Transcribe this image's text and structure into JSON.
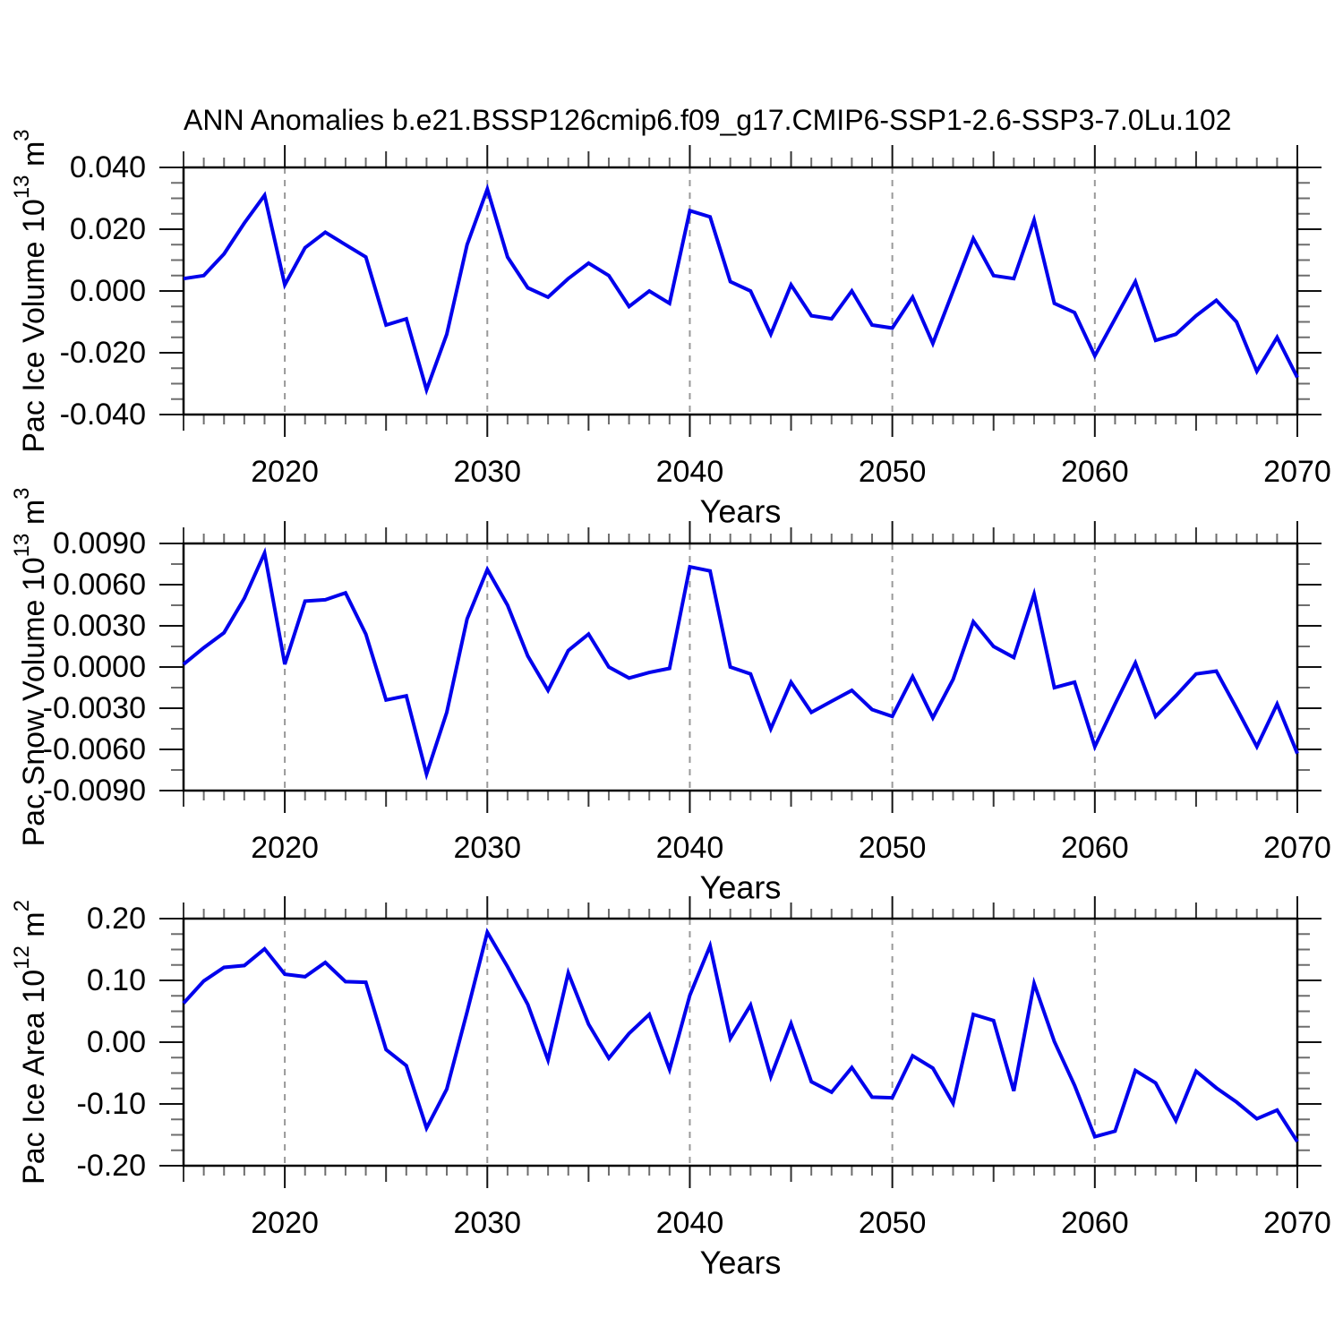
{
  "title": "ANN Anomalies b.e21.BSSP126cmip6.f09_g17.CMIP6-SSP1-2.6-SSP3-7.0Lu.102",
  "colors": {
    "line": "#0101EC",
    "axis": "#000000",
    "gridline": "#999999",
    "major_tick": "#111111",
    "medium_tick": "#333333",
    "minor_tick": "#6e6e6e"
  },
  "x_axis": {
    "label": "Years",
    "start": 2015,
    "end": 2070,
    "major_interval": 10,
    "medium_interval": 5,
    "minor_interval": 1,
    "major_tick_labels": [
      "2020",
      "2030",
      "2040",
      "2050",
      "2060",
      "2070"
    ],
    "gridlines": [
      2020,
      2030,
      2040,
      2050,
      2060
    ]
  },
  "chart_data": [
    {
      "type": "line",
      "series_name": "pac-ice-volume",
      "ylabel": "Pac Ice Volume 10^13 m^3",
      "ylabel_parts": [
        {
          "t": "Pac Ice Volume 10"
        },
        {
          "t": "13",
          "sup": true
        },
        {
          "t": " m"
        },
        {
          "t": "3",
          "sup": true
        }
      ],
      "ylim": [
        -0.04,
        0.04
      ],
      "ymajor": 0.02,
      "yminor": 0.005,
      "ytick_labels": [
        "0.040",
        "0.020",
        "0.000",
        "-0.020",
        "-0.040"
      ],
      "x_start": 2015,
      "x_step": 1,
      "grid": "vertical-dashed-decades",
      "legend": "none",
      "values": [
        0.004,
        0.005,
        0.012,
        0.022,
        0.031,
        0.002,
        0.014,
        0.019,
        0.015,
        0.011,
        -0.011,
        -0.009,
        -0.032,
        -0.014,
        0.015,
        0.033,
        0.011,
        0.001,
        -0.002,
        0.004,
        0.009,
        0.005,
        -0.005,
        0.0,
        -0.004,
        0.026,
        0.024,
        0.003,
        0.0,
        -0.014,
        0.002,
        -0.008,
        -0.009,
        0.0,
        -0.011,
        -0.012,
        -0.002,
        -0.017,
        0.0,
        0.017,
        0.005,
        0.004,
        0.023,
        -0.004,
        -0.007,
        -0.021,
        -0.009,
        0.003,
        -0.016,
        -0.014,
        -0.008,
        -0.003,
        -0.01,
        -0.026,
        -0.015,
        -0.028
      ]
    },
    {
      "type": "line",
      "series_name": "pac-snow-volume",
      "ylabel": "Pac Snow Volume 10^13 m^3",
      "ylabel_parts": [
        {
          "t": "Pac Snow Volume 10"
        },
        {
          "t": "13",
          "sup": true
        },
        {
          "t": " m"
        },
        {
          "t": "3",
          "sup": true
        }
      ],
      "ylim": [
        -0.009,
        0.009
      ],
      "ymajor": 0.003,
      "yminor": 0.0015,
      "ytick_labels": [
        "0.0090",
        "0.0060",
        "0.0030",
        "0.0000",
        "-0.0030",
        "-0.0060",
        "-0.0090"
      ],
      "x_start": 2015,
      "x_step": 1,
      "grid": "vertical-dashed-decades",
      "legend": "none",
      "values": [
        0.0002,
        0.0014,
        0.0025,
        0.005,
        0.0083,
        0.0002,
        0.0048,
        0.0049,
        0.0054,
        0.0024,
        -0.0024,
        -0.0021,
        -0.0078,
        -0.0033,
        0.0035,
        0.0071,
        0.0045,
        0.0008,
        -0.0017,
        0.0012,
        0.0024,
        0.0,
        -0.0008,
        -0.0004,
        -0.0001,
        0.0073,
        0.007,
        0.0,
        -0.0005,
        -0.0045,
        -0.0011,
        -0.0033,
        -0.0025,
        -0.0017,
        -0.0031,
        -0.0036,
        -0.0007,
        -0.0037,
        -0.0009,
        0.0033,
        0.0015,
        0.0007,
        0.0053,
        -0.0015,
        -0.0011,
        -0.0058,
        -0.0027,
        0.0003,
        -0.0036,
        -0.0021,
        -0.0005,
        -0.0003,
        -0.003,
        -0.0058,
        -0.0027,
        -0.0063
      ]
    },
    {
      "type": "line",
      "series_name": "pac-ice-area",
      "ylabel": "Pac Ice Area 10^12 m^2",
      "ylabel_parts": [
        {
          "t": "Pac Ice Area 10"
        },
        {
          "t": "12",
          "sup": true
        },
        {
          "t": " m"
        },
        {
          "t": "2",
          "sup": true
        }
      ],
      "ylim": [
        -0.2,
        0.2
      ],
      "ymajor": 0.1,
      "yminor": 0.025,
      "ytick_labels": [
        "0.20",
        "0.10",
        "0.00",
        "-0.10",
        "-0.20"
      ],
      "x_start": 2015,
      "x_step": 1,
      "grid": "vertical-dashed-decades",
      "legend": "none",
      "values": [
        0.063,
        0.099,
        0.121,
        0.124,
        0.151,
        0.11,
        0.106,
        0.129,
        0.098,
        0.097,
        -0.012,
        -0.038,
        -0.139,
        -0.076,
        0.049,
        0.178,
        0.122,
        0.061,
        -0.029,
        0.112,
        0.029,
        -0.026,
        0.014,
        0.045,
        -0.044,
        0.076,
        0.156,
        0.006,
        0.06,
        -0.056,
        0.03,
        -0.064,
        -0.081,
        -0.041,
        -0.089,
        -0.09,
        -0.022,
        -0.042,
        -0.099,
        0.045,
        0.035,
        -0.079,
        0.095,
        0.001,
        -0.07,
        -0.153,
        -0.144,
        -0.046,
        -0.066,
        -0.127,
        -0.047,
        -0.074,
        -0.097,
        -0.124,
        -0.11,
        -0.161
      ]
    }
  ]
}
